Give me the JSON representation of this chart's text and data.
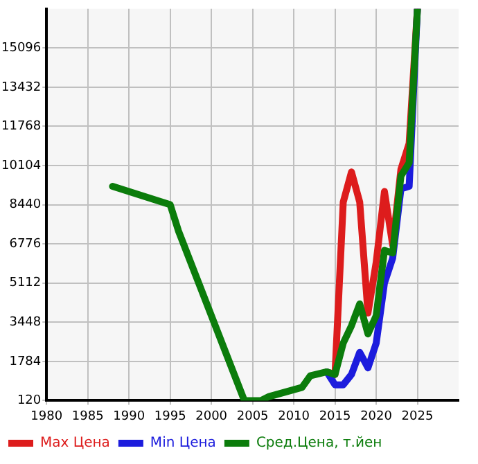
{
  "chart_data": {
    "type": "line",
    "x": [
      1988,
      1995,
      1996,
      2004,
      2006,
      2007,
      2011,
      2012,
      2014,
      2015,
      2016,
      2017,
      2018,
      2019,
      2020,
      2021,
      2022,
      2023,
      2024,
      2025
    ],
    "series": [
      {
        "name": "Max Цена",
        "color": "#dd1c1c",
        "values": [
          null,
          null,
          null,
          null,
          null,
          null,
          null,
          null,
          1340,
          1230,
          8550,
          9830,
          8550,
          3840,
          6000,
          9000,
          6720,
          9940,
          11050,
          16760
        ]
      },
      {
        "name": "Min Цена",
        "color": "#1c1cdd",
        "values": [
          null,
          null,
          null,
          null,
          null,
          null,
          null,
          null,
          1340,
          790,
          790,
          1230,
          2170,
          1510,
          2560,
          5110,
          6170,
          9110,
          9220,
          16760
        ]
      },
      {
        "name": "Сред.Цена, т.йен",
        "color": "#0b7c0b",
        "values": [
          9220,
          8440,
          7330,
          120,
          120,
          290,
          680,
          1170,
          1340,
          1230,
          2560,
          3300,
          4230,
          2950,
          3730,
          6500,
          6390,
          9660,
          10220,
          16760
        ]
      }
    ],
    "xlim": [
      1980,
      2030
    ],
    "xticks": [
      1980,
      1985,
      1990,
      1995,
      2000,
      2005,
      2010,
      2015,
      2020,
      2025
    ],
    "ylim": [
      120,
      16760
    ],
    "yticks": [
      120,
      1784,
      3448,
      5112,
      6776,
      8440,
      10104,
      11768,
      13432,
      15096
    ],
    "grid": true,
    "legend": "bottom",
    "marker": "none",
    "line_style": "solid"
  }
}
